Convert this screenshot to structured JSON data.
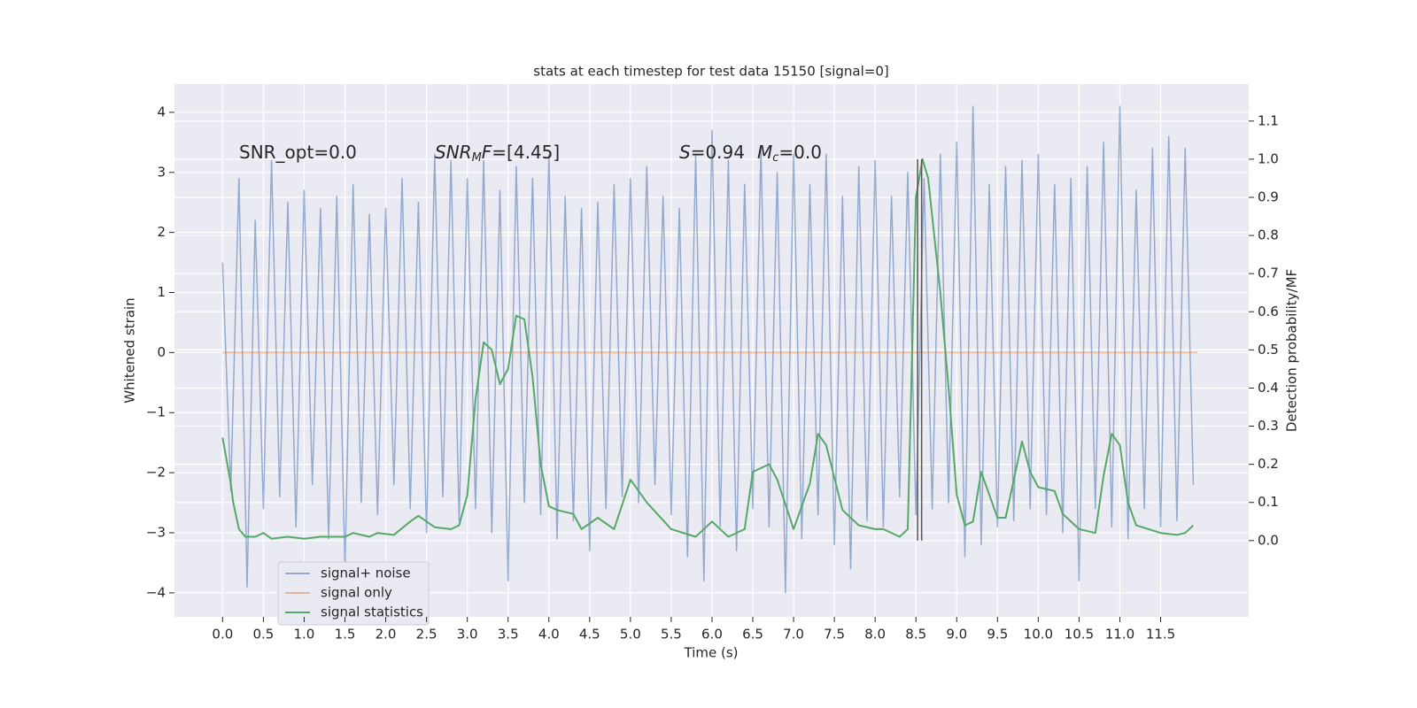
{
  "chart_data": {
    "type": "line",
    "title": "stats at each timestep for test data 15150 [signal=0]",
    "xlabel": "Time (s)",
    "ylabel": "Whitened strain",
    "y2label": "Detection probability/MF",
    "xlim": [
      -0.59,
      12.58
    ],
    "ylim": [
      -4.4,
      4.47
    ],
    "y2lim": [
      -0.2,
      1.197
    ],
    "xticks": [
      {
        "value": 0,
        "label": "0.0"
      },
      0.5,
      {
        "value": 1,
        "label": "1.0"
      },
      1.5,
      {
        "value": 2,
        "label": "2.0"
      },
      2.5,
      {
        "value": 3,
        "label": "3.0"
      },
      3.5,
      {
        "value": 4,
        "label": "4.0"
      },
      4.5,
      {
        "value": 5,
        "label": "5.0"
      },
      5.5,
      {
        "value": 6,
        "label": "6.0"
      },
      6.5,
      {
        "value": 7,
        "label": "7.0"
      },
      7.5,
      {
        "value": 8,
        "label": "8.0"
      },
      8.5,
      {
        "value": 9,
        "label": "9.0"
      },
      9.5,
      {
        "value": 10,
        "label": "10.0"
      },
      10.5,
      {
        "value": 11,
        "label": "11.0"
      },
      11.5
    ],
    "yticks": [
      {
        "value": -4,
        "label": "−4"
      },
      {
        "value": -3,
        "label": "−3"
      },
      {
        "value": -2,
        "label": "−2"
      },
      {
        "value": -1,
        "label": "−1"
      },
      0,
      1,
      2,
      3,
      4
    ],
    "y2ticks": [
      {
        "value": 0,
        "label": "0.0"
      },
      0.1,
      0.2,
      0.3,
      0.4,
      0.5,
      0.6,
      0.7,
      0.8,
      0.9,
      {
        "value": 1,
        "label": "1.0"
      },
      1.1
    ],
    "grid": true,
    "legend": "lower left",
    "annotations": [
      {
        "parts": [
          "SNR_opt=0.0"
        ]
      },
      {
        "parts": [
          "SNR",
          "M",
          "F",
          "=[4.45]"
        ]
      },
      {
        "parts": [
          "S",
          "=0.94",
          "M",
          "c",
          "=0.0"
        ]
      }
    ],
    "vline_x": [
      8.52,
      8.57
    ],
    "vline_span": [
      0,
      1
    ],
    "series": [
      {
        "name": "signal+ noise",
        "color": "#4c72b0",
        "x": [
          0,
          0.1,
          0.2,
          0.3,
          0.4,
          0.5,
          0.6,
          0.7,
          0.8,
          0.9,
          1,
          1.1,
          1.2,
          1.3,
          1.4,
          1.5,
          1.6,
          1.7,
          1.8,
          1.9,
          2,
          2.1,
          2.2,
          2.3,
          2.4,
          2.5,
          2.6,
          2.7,
          2.8,
          2.9,
          3,
          3.1,
          3.2,
          3.3,
          3.4,
          3.5,
          3.6,
          3.7,
          3.8,
          3.9,
          4,
          4.1,
          4.2,
          4.3,
          4.4,
          4.5,
          4.6,
          4.7,
          4.8,
          4.9,
          5,
          5.1,
          5.2,
          5.3,
          5.4,
          5.5,
          5.6,
          5.7,
          5.8,
          5.9,
          6,
          6.1,
          6.2,
          6.3,
          6.4,
          6.5,
          6.6,
          6.7,
          6.8,
          6.9,
          7,
          7.1,
          7.2,
          7.3,
          7.4,
          7.5,
          7.6,
          7.7,
          7.8,
          7.9,
          8,
          8.1,
          8.2,
          8.3,
          8.4,
          8.5,
          8.6,
          8.7,
          8.8,
          8.9,
          9,
          9.1,
          9.2,
          9.3,
          9.4,
          9.5,
          9.6,
          9.7,
          9.8,
          9.9,
          10,
          10.1,
          10.2,
          10.3,
          10.4,
          10.5,
          10.6,
          10.7,
          10.8,
          10.9,
          11,
          11.1,
          11.2,
          11.3,
          11.4,
          11.5,
          11.6,
          11.7,
          11.8,
          11.9
        ],
        "values": [
          1.5,
          -2.3,
          2.9,
          -3.9,
          2.2,
          -2.6,
          3.2,
          -2.4,
          2.5,
          -2.9,
          2.7,
          -2.2,
          2.4,
          -3.1,
          2.6,
          -3.6,
          2.8,
          -2.5,
          2.3,
          -2.7,
          2.4,
          -2.2,
          2.9,
          -2.6,
          2.5,
          -3.0,
          3.3,
          -2.4,
          3.2,
          -2.8,
          2.9,
          -2.6,
          3.2,
          -3.0,
          2.7,
          -3.8,
          3.1,
          -2.5,
          2.9,
          -2.7,
          3.3,
          -3.1,
          2.6,
          -2.8,
          2.4,
          -3.3,
          2.5,
          -2.6,
          2.8,
          -2.4,
          2.9,
          -2.5,
          3.1,
          -2.2,
          2.6,
          -2.7,
          2.4,
          -3.4,
          3.3,
          -3.8,
          3.7,
          -2.9,
          3.2,
          -3.3,
          2.8,
          -2.6,
          3.4,
          -2.9,
          3.0,
          -4.0,
          3.3,
          -3.1,
          2.8,
          -2.7,
          3.3,
          -3.2,
          2.6,
          -3.6,
          3.1,
          -2.8,
          3.2,
          -2.9,
          2.6,
          -2.4,
          3.0,
          -2.7,
          2.9,
          -2.6,
          3.3,
          -2.5,
          3.5,
          -3.4,
          4.1,
          -3.2,
          2.8,
          -2.9,
          3.1,
          -2.8,
          3.2,
          -2.6,
          3.3,
          -2.7,
          2.8,
          -3.0,
          2.9,
          -3.8,
          3.1,
          -2.6,
          3.5,
          -2.9,
          4.1,
          -3.1,
          2.7,
          -2.6,
          3.4,
          -2.9,
          3.6,
          -2.8,
          3.4,
          -2.2
        ]
      },
      {
        "name": "signal only",
        "color": "#dd8452",
        "x": [
          0,
          11.95
        ],
        "values": [
          0,
          0
        ]
      },
      {
        "name": "signal statistics",
        "color": "#55a868",
        "axis": "y2",
        "x": [
          0,
          0.1,
          0.13,
          0.2,
          0.28,
          0.4,
          0.5,
          0.6,
          0.8,
          1,
          1.2,
          1.5,
          1.6,
          1.8,
          1.9,
          2.1,
          2.3,
          2.4,
          2.6,
          2.8,
          2.9,
          3,
          3.1,
          3.2,
          3.3,
          3.4,
          3.5,
          3.6,
          3.7,
          3.8,
          3.9,
          4,
          4.1,
          4.3,
          4.4,
          4.6,
          4.8,
          5,
          5.2,
          5.5,
          5.8,
          6,
          6.2,
          6.4,
          6.5,
          6.6,
          6.7,
          6.8,
          7,
          7.2,
          7.3,
          7.4,
          7.6,
          7.8,
          8,
          8.1,
          8.3,
          8.4,
          8.5,
          8.58,
          8.65,
          8.8,
          8.9,
          9,
          9.1,
          9.2,
          9.3,
          9.5,
          9.6,
          9.8,
          9.9,
          10,
          10.2,
          10.3,
          10.5,
          10.7,
          10.8,
          10.9,
          11,
          11.1,
          11.2,
          11.5,
          11.7,
          11.8,
          11.9
        ],
        "values": [
          0.27,
          0.15,
          0.1,
          0.03,
          0.01,
          0.01,
          0.02,
          0.005,
          0.01,
          0.005,
          0.01,
          0.01,
          0.02,
          0.01,
          0.02,
          0.015,
          0.05,
          0.065,
          0.035,
          0.03,
          0.04,
          0.12,
          0.37,
          0.52,
          0.5,
          0.41,
          0.45,
          0.59,
          0.58,
          0.43,
          0.2,
          0.09,
          0.08,
          0.07,
          0.03,
          0.06,
          0.03,
          0.16,
          0.1,
          0.03,
          0.01,
          0.05,
          0.01,
          0.03,
          0.18,
          0.19,
          0.2,
          0.16,
          0.03,
          0.15,
          0.28,
          0.25,
          0.08,
          0.04,
          0.03,
          0.03,
          0.01,
          0.03,
          0.9,
          1.0,
          0.95,
          0.65,
          0.4,
          0.12,
          0.04,
          0.05,
          0.18,
          0.06,
          0.06,
          0.26,
          0.18,
          0.14,
          0.13,
          0.07,
          0.03,
          0.02,
          0.17,
          0.28,
          0.25,
          0.1,
          0.04,
          0.02,
          0.015,
          0.02,
          0.04
        ]
      }
    ]
  }
}
